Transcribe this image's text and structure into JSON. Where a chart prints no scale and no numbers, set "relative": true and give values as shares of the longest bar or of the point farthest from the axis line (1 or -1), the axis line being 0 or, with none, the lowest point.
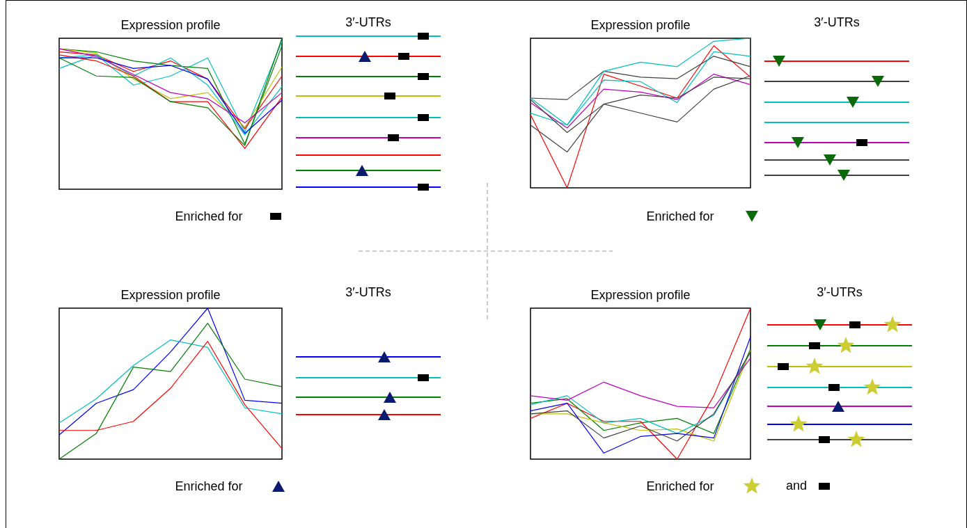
{
  "chart_data": [
    {
      "type": "line",
      "title": "Expression profile",
      "relative": true,
      "categories": [
        null,
        null,
        null,
        null,
        null,
        null,
        null
      ],
      "annotations": [
        "3′-UTRs",
        "Enriched for"
      ],
      "series": [
        {
          "color": "#00bfbf",
          "values": [
            0.8,
            0.89,
            0.69,
            0.75,
            0.87,
            0.38,
            0.98
          ]
        },
        {
          "color": "#ff0000",
          "values": [
            0.91,
            0.89,
            0.78,
            0.85,
            0.73,
            0.4,
            0.75
          ]
        },
        {
          "color": "#007f00",
          "values": [
            0.93,
            0.91,
            0.85,
            0.82,
            0.8,
            0.3,
            0.95
          ]
        },
        {
          "color": "#bfbf00",
          "values": [
            0.93,
            0.9,
            0.73,
            0.6,
            0.64,
            0.41,
            0.81
          ]
        },
        {
          "color": "#00bfbf",
          "values": [
            0.87,
            0.89,
            0.75,
            0.87,
            0.69,
            0.36,
            0.68
          ]
        },
        {
          "color": "#bf00bf",
          "values": [
            0.93,
            0.88,
            0.76,
            0.64,
            0.6,
            0.44,
            0.64
          ]
        },
        {
          "color": "#ff0000",
          "values": [
            0.89,
            0.85,
            0.75,
            0.58,
            0.58,
            0.27,
            0.61
          ]
        },
        {
          "color": "#007f00",
          "values": [
            0.87,
            0.75,
            0.74,
            0.58,
            0.54,
            0.29,
            1
          ]
        },
        {
          "color": "#0000ff",
          "values": [
            0.87,
            0.87,
            0.8,
            0.82,
            0.73,
            0.37,
            0.59
          ]
        }
      ]
    },
    {
      "type": "line",
      "title": "Expression profile",
      "relative": true,
      "categories": [
        null,
        null,
        null,
        null,
        null,
        null,
        null
      ],
      "annotations": [
        "3′-UTRs",
        "Enriched for"
      ],
      "series": [
        {
          "color": "#ff0000",
          "values": [
            0.49,
            0,
            0.76,
            0.68,
            0.6,
            0.95,
            0.74
          ]
        },
        {
          "color": "#404040",
          "values": [
            0.6,
            0.59,
            0.78,
            0.74,
            0.73,
            0.88,
            0.81
          ]
        },
        {
          "color": "#00bfbf",
          "values": [
            0.6,
            0.42,
            0.78,
            0.84,
            0.81,
            0.98,
            1
          ]
        },
        {
          "color": "#00bfbf",
          "values": [
            0.5,
            0.42,
            0.72,
            0.71,
            0.57,
            0.91,
            0.88
          ]
        },
        {
          "color": "#bf00bf",
          "values": [
            0.57,
            0.4,
            0.66,
            0.64,
            0.59,
            0.76,
            0.69
          ]
        },
        {
          "color": "#404040",
          "values": [
            0.59,
            0.37,
            0.56,
            0.62,
            0.6,
            0.74,
            0.73
          ]
        },
        {
          "color": "#404040",
          "values": [
            0.42,
            0.24,
            0.56,
            0.5,
            0.44,
            0.66,
            0.75
          ]
        }
      ]
    },
    {
      "type": "line",
      "title": "Expression profile",
      "relative": true,
      "categories": [
        null,
        null,
        null,
        null,
        null,
        null,
        null
      ],
      "annotations": [
        "3′-UTRs",
        "Enriched for"
      ],
      "series": [
        {
          "color": "#0000ff",
          "values": [
            0.16,
            0.37,
            0.46,
            0.71,
            1,
            0.39,
            0.37
          ]
        },
        {
          "color": "#00bfbf",
          "values": [
            0.24,
            0.4,
            0.62,
            0.79,
            0.74,
            0.34,
            0.3
          ]
        },
        {
          "color": "#007f00",
          "values": [
            0,
            0.17,
            0.61,
            0.58,
            0.9,
            0.53,
            0.48
          ]
        },
        {
          "color": "#ff0000",
          "values": [
            0.19,
            0.19,
            0.25,
            0.47,
            0.78,
            0.36,
            0.07
          ]
        }
      ]
    },
    {
      "type": "line",
      "title": "Expression profile",
      "relative": true,
      "categories": [
        null,
        null,
        null,
        null,
        null,
        null,
        null
      ],
      "annotations": [
        "3′-UTRs",
        "Enriched for",
        "and"
      ],
      "series": [
        {
          "color": "#ff0000",
          "values": [
            0.27,
            0.37,
            0.25,
            0.25,
            0,
            0.42,
            1
          ]
        },
        {
          "color": "#007f00",
          "values": [
            0.37,
            0.4,
            0.19,
            0.24,
            0.27,
            0.17,
            0.73
          ]
        },
        {
          "color": "#bfbf00",
          "values": [
            0.3,
            0.3,
            0.24,
            0.19,
            0.2,
            0.12,
            0.72
          ]
        },
        {
          "color": "#00bfbf",
          "values": [
            0.36,
            0.42,
            0.24,
            0.27,
            0.17,
            0.29,
            0.71
          ]
        },
        {
          "color": "#bf00bf",
          "values": [
            0.42,
            0.39,
            0.51,
            0.42,
            0.35,
            0.34,
            0.67
          ]
        },
        {
          "color": "#0000ff",
          "values": [
            0.32,
            0.37,
            0.04,
            0.15,
            0.17,
            0.14,
            0.81
          ]
        },
        {
          "color": "#404040",
          "values": [
            0.3,
            0.32,
            0.14,
            0.22,
            0.12,
            0.3,
            0.71
          ]
        }
      ]
    }
  ]
}
